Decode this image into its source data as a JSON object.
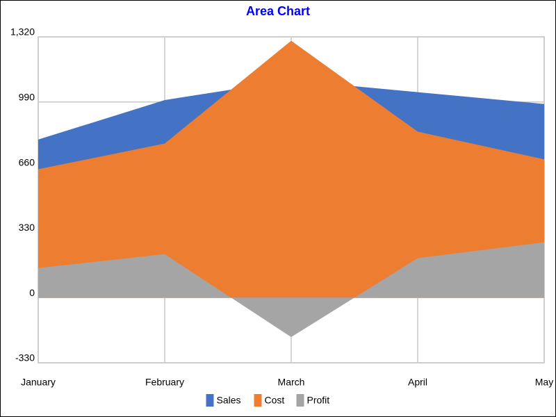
{
  "chart_data": {
    "type": "area",
    "title": "Area Chart",
    "categories": [
      "January",
      "February",
      "March",
      "April",
      "May"
    ],
    "series": [
      {
        "name": "Sales",
        "color": "#4472c4",
        "values": [
          800,
          1000,
          1100,
          1040,
          980
        ]
      },
      {
        "name": "Cost",
        "color": "#ed7d31",
        "values": [
          650,
          780,
          1300,
          840,
          700
        ]
      },
      {
        "name": "Profit",
        "color": "#a5a5a5",
        "values": [
          150,
          220,
          -200,
          200,
          280
        ]
      }
    ],
    "ylim": [
      -330,
      1320
    ],
    "yticks": [
      -330,
      0,
      330,
      660,
      990,
      {
        "value": 1320,
        "label": "1,320"
      }
    ],
    "grid": true,
    "legend": "bottom",
    "title_color": "#0000ff"
  }
}
